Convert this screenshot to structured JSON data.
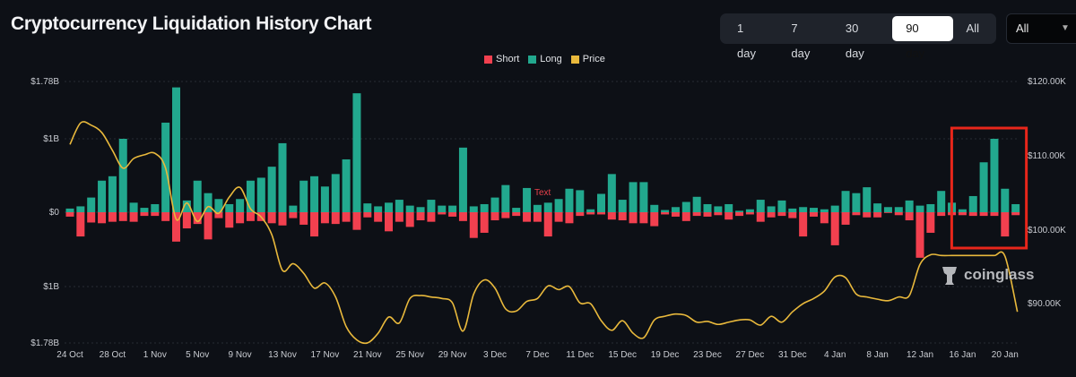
{
  "header": {
    "title": "Cryptocurrency Liquidation History Chart"
  },
  "range_tabs": [
    {
      "label": "1 day",
      "active": false
    },
    {
      "label": "7 day",
      "active": false
    },
    {
      "label": "30 day",
      "active": false
    },
    {
      "label": "90 day",
      "active": true
    },
    {
      "label": "All",
      "active": false
    }
  ],
  "symbol_select": {
    "value": "All",
    "icon": "chevron-down-icon"
  },
  "watermark": {
    "text": "coinglass",
    "icon": "coinglass-logo-icon"
  },
  "chart_data": {
    "type": "bar",
    "legend_position": "top-center",
    "grid": true,
    "colors": {
      "short": "#f2404f",
      "long": "#22a88e",
      "price": "#e9b93c",
      "highlight": "#e8261b",
      "background": "#0d1016"
    },
    "legend": [
      "Short",
      "Long",
      "Price"
    ],
    "left_axis": {
      "ticks": [
        "$1.78B",
        "$1B",
        "$0",
        "$1B",
        "$1.78B"
      ],
      "range_billions": [
        -1.78,
        1.78
      ]
    },
    "right_axis": {
      "ticks": [
        "$120.00K",
        "$110.00K",
        "$100.00K",
        "$90.00K"
      ],
      "range_thousands": [
        82.5,
        120
      ]
    },
    "x_ticks": [
      "24 Oct",
      "28 Oct",
      "1 Nov",
      "5 Nov",
      "9 Nov",
      "13 Nov",
      "17 Nov",
      "21 Nov",
      "25 Nov",
      "29 Nov",
      "3 Dec",
      "7 Dec",
      "11 Dec",
      "15 Dec",
      "19 Dec",
      "23 Dec",
      "27 Dec",
      "31 Dec",
      "4 Jan",
      "8 Jan",
      "12 Jan",
      "16 Jan",
      "20 Jan"
    ],
    "annotation": "Text",
    "highlight_range": [
      "16 Jan",
      "21 Jan"
    ],
    "categories": [
      "24 Oct",
      "25 Oct",
      "26 Oct",
      "27 Oct",
      "28 Oct",
      "29 Oct",
      "30 Oct",
      "31 Oct",
      "1 Nov",
      "2 Nov",
      "3 Nov",
      "4 Nov",
      "5 Nov",
      "6 Nov",
      "7 Nov",
      "8 Nov",
      "9 Nov",
      "10 Nov",
      "11 Nov",
      "12 Nov",
      "13 Nov",
      "14 Nov",
      "15 Nov",
      "16 Nov",
      "17 Nov",
      "18 Nov",
      "19 Nov",
      "20 Nov",
      "21 Nov",
      "22 Nov",
      "23 Nov",
      "24 Nov",
      "25 Nov",
      "26 Nov",
      "27 Nov",
      "28 Nov",
      "29 Nov",
      "30 Nov",
      "1 Dec",
      "2 Dec",
      "3 Dec",
      "4 Dec",
      "5 Dec",
      "6 Dec",
      "7 Dec",
      "8 Dec",
      "9 Dec",
      "10 Dec",
      "11 Dec",
      "12 Dec",
      "13 Dec",
      "14 Dec",
      "15 Dec",
      "16 Dec",
      "17 Dec",
      "18 Dec",
      "19 Dec",
      "20 Dec",
      "21 Dec",
      "22 Dec",
      "23 Dec",
      "24 Dec",
      "25 Dec",
      "26 Dec",
      "27 Dec",
      "28 Dec",
      "29 Dec",
      "30 Dec",
      "31 Dec",
      "1 Jan",
      "2 Jan",
      "3 Jan",
      "4 Jan",
      "5 Jan",
      "6 Jan",
      "7 Jan",
      "8 Jan",
      "9 Jan",
      "10 Jan",
      "11 Jan",
      "12 Jan",
      "13 Jan",
      "14 Jan",
      "15 Jan",
      "16 Jan",
      "17 Jan",
      "18 Jan",
      "19 Jan",
      "20 Jan",
      "21 Jan"
    ],
    "series": [
      {
        "name": "Long",
        "unit": "billion USD",
        "values": [
          0.05,
          0.08,
          0.2,
          0.43,
          0.49,
          1.0,
          0.13,
          0.06,
          0.11,
          1.22,
          1.7,
          0.16,
          0.43,
          0.26,
          0.18,
          0.11,
          0.18,
          0.43,
          0.47,
          0.62,
          0.94,
          0.09,
          0.43,
          0.49,
          0.35,
          0.52,
          0.72,
          1.62,
          0.12,
          0.08,
          0.13,
          0.17,
          0.09,
          0.07,
          0.17,
          0.09,
          0.09,
          0.88,
          0.08,
          0.11,
          0.2,
          0.37,
          0.06,
          0.33,
          0.1,
          0.13,
          0.18,
          0.32,
          0.3,
          0.04,
          0.25,
          0.52,
          0.17,
          0.41,
          0.41,
          0.1,
          0.03,
          0.07,
          0.14,
          0.21,
          0.11,
          0.08,
          0.11,
          0.02,
          0.04,
          0.17,
          0.08,
          0.16,
          0.05,
          0.07,
          0.06,
          0.04,
          0.09,
          0.29,
          0.26,
          0.34,
          0.12,
          0.07,
          0.07,
          0.16,
          0.09,
          0.11,
          0.29,
          0.13,
          0.04,
          0.22,
          0.68,
          1.0,
          0.32,
          0.11
        ]
      },
      {
        "name": "Short",
        "unit": "billion USD",
        "values": [
          0.06,
          0.33,
          0.14,
          0.15,
          0.13,
          0.12,
          0.13,
          0.05,
          0.05,
          0.12,
          0.4,
          0.22,
          0.16,
          0.37,
          0.08,
          0.21,
          0.15,
          0.12,
          0.12,
          0.15,
          0.18,
          0.08,
          0.17,
          0.33,
          0.15,
          0.16,
          0.13,
          0.24,
          0.07,
          0.13,
          0.26,
          0.13,
          0.2,
          0.11,
          0.13,
          0.03,
          0.06,
          0.12,
          0.35,
          0.28,
          0.11,
          0.08,
          0.05,
          0.13,
          0.13,
          0.33,
          0.13,
          0.15,
          0.05,
          0.03,
          0.03,
          0.1,
          0.11,
          0.15,
          0.15,
          0.19,
          0.03,
          0.06,
          0.12,
          0.05,
          0.06,
          0.04,
          0.1,
          0.05,
          0.03,
          0.13,
          0.07,
          0.05,
          0.08,
          0.33,
          0.06,
          0.15,
          0.45,
          0.17,
          0.04,
          0.07,
          0.07,
          0.01,
          0.04,
          0.11,
          0.62,
          0.28,
          0.05,
          0.04,
          0.04,
          0.05,
          0.05,
          0.05,
          0.33,
          0.04
        ]
      },
      {
        "name": "Price",
        "unit": "thousand USD",
        "values": [
          111.5,
          114.4,
          114.1,
          113.1,
          110.7,
          108.3,
          109.6,
          110.1,
          110.3,
          108.3,
          101.4,
          103.6,
          101.1,
          103.1,
          102.2,
          104.4,
          105.7,
          102.8,
          101.7,
          99.3,
          94.5,
          95.4,
          94.1,
          92.1,
          92.8,
          90.9,
          86.9,
          85.1,
          84.7,
          86.0,
          88.2,
          87.4,
          90.7,
          91.1,
          90.9,
          90.7,
          90.1,
          86.3,
          91.3,
          93.2,
          92.1,
          89.3,
          89.0,
          90.3,
          90.7,
          92.4,
          91.9,
          92.3,
          90.1,
          90.0,
          87.7,
          86.4,
          87.7,
          86.0,
          85.4,
          87.8,
          88.3,
          88.6,
          88.4,
          87.5,
          87.6,
          87.2,
          87.5,
          87.8,
          87.8,
          87.1,
          88.3,
          87.5,
          88.9,
          90.0,
          90.7,
          91.7,
          93.6,
          93.5,
          91.3,
          90.9,
          90.6,
          90.4,
          90.9,
          91.1,
          95.3,
          96.6,
          96.5,
          96.5,
          96.5,
          96.5,
          96.5,
          96.5,
          96.4,
          88.9
        ]
      }
    ]
  }
}
